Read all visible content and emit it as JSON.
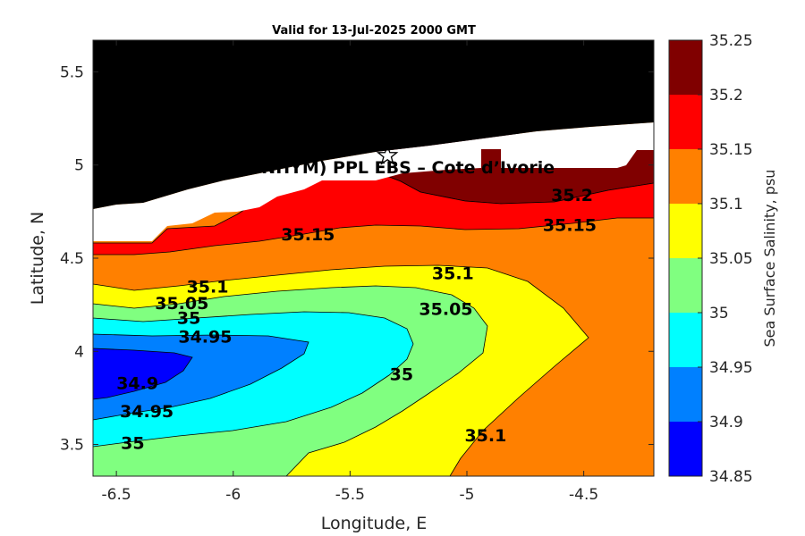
{
  "chart_data": {
    "type": "contour",
    "title": "Valid for 13-Jul-2025 2000 GMT",
    "xlabel": "Longitude, E",
    "ylabel": "Latitude, N",
    "xlim": [
      -6.6,
      -4.2
    ],
    "ylim": [
      3.33,
      5.67
    ],
    "xticks": [
      "-6.5",
      "-6",
      "-5.5",
      "-5",
      "-4.5"
    ],
    "yticks": [
      "3.5",
      "4",
      "4.5",
      "5",
      "5.5"
    ],
    "colorbar": {
      "label": "Sea Surface Salinity, psu",
      "ticks": [
        "34.85",
        "34.9",
        "34.95",
        "35",
        "35.05",
        "35.1",
        "35.15",
        "35.2",
        "35.25"
      ],
      "levels": [
        {
          "from": 34.85,
          "to": 34.9,
          "color": "#0000ff"
        },
        {
          "from": 34.9,
          "to": 34.95,
          "color": "#0080ff"
        },
        {
          "from": 34.95,
          "to": 35.0,
          "color": "#00ffff"
        },
        {
          "from": 35.0,
          "to": 35.05,
          "color": "#80ff80"
        },
        {
          "from": 35.05,
          "to": 35.1,
          "color": "#ffff00"
        },
        {
          "from": 35.1,
          "to": 35.15,
          "color": "#ff8000"
        },
        {
          "from": 35.15,
          "to": 35.2,
          "color": "#ff0000"
        },
        {
          "from": 35.2,
          "to": 35.25,
          "color": "#800000"
        }
      ]
    },
    "land_color": "#000000",
    "nodata_color": "#ffffff",
    "marker": {
      "symbol": "star",
      "lon": -5.34,
      "lat": 5.05
    },
    "annotation": {
      "text": "A (ONHYM) PPL EBS  – Cote d’Ivorie",
      "lon": -5.34,
      "lat": 4.99
    },
    "contour_labels": [
      {
        "text": "35.2",
        "lon": -4.55,
        "lat": 4.84
      },
      {
        "text": "35.15",
        "lon": -5.68,
        "lat": 4.63
      },
      {
        "text": "35.15",
        "lon": -4.56,
        "lat": 4.68
      },
      {
        "text": "35.1",
        "lon": -6.11,
        "lat": 4.35
      },
      {
        "text": "35.1",
        "lon": -5.06,
        "lat": 4.42
      },
      {
        "text": "35.05",
        "lon": -6.22,
        "lat": 4.26
      },
      {
        "text": "35.05",
        "lon": -5.09,
        "lat": 4.23
      },
      {
        "text": "35",
        "lon": -6.19,
        "lat": 4.18
      },
      {
        "text": "35",
        "lon": -5.28,
        "lat": 3.88
      },
      {
        "text": "34.95",
        "lon": -6.12,
        "lat": 4.08
      },
      {
        "text": "34.95",
        "lon": -6.37,
        "lat": 3.68
      },
      {
        "text": "34.9",
        "lon": -6.41,
        "lat": 3.83
      },
      {
        "text": "35",
        "lon": -6.43,
        "lat": 3.51
      },
      {
        "text": "35.1",
        "lon": -4.92,
        "lat": 3.55
      }
    ]
  }
}
